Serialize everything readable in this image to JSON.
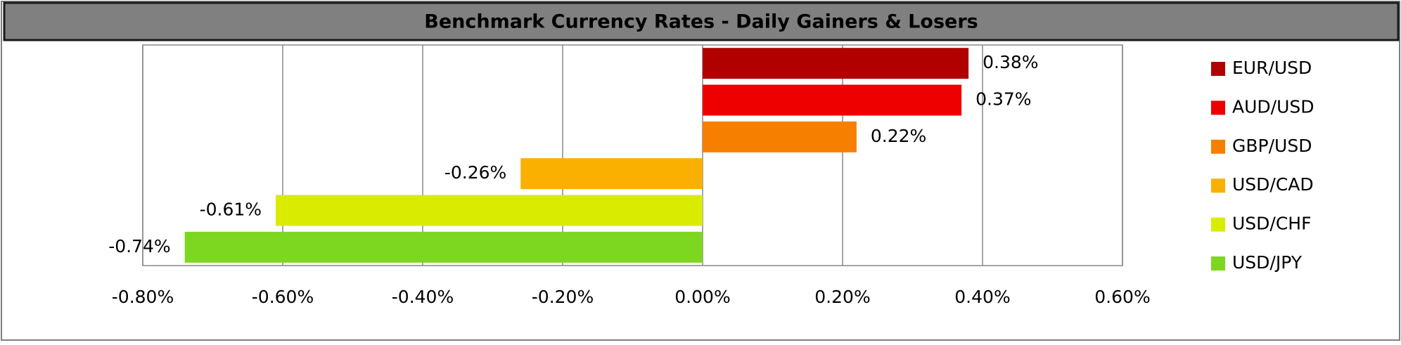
{
  "chart_data": {
    "type": "bar",
    "orientation": "horizontal",
    "title": "Benchmark Currency Rates - Daily Gainers & Losers",
    "categories": [
      "EUR/USD",
      "AUD/USD",
      "GBP/USD",
      "USD/CAD",
      "USD/CHF",
      "USD/JPY"
    ],
    "values": [
      0.38,
      0.37,
      0.22,
      -0.26,
      -0.61,
      -0.74
    ],
    "value_labels": [
      "0.38%",
      "0.37%",
      "0.22%",
      "-0.26%",
      "-0.61%",
      "-0.74%"
    ],
    "colors": [
      "#b00000",
      "#ee0000",
      "#f77f00",
      "#f9b000",
      "#d9ec00",
      "#7dd61f"
    ],
    "xlim": [
      -0.8,
      0.6
    ],
    "xticks": [
      {
        "value": -0.8,
        "label": "-0.80%"
      },
      {
        "value": -0.6,
        "label": "-0.60%"
      },
      {
        "value": -0.4,
        "label": "-0.40%"
      },
      {
        "value": -0.2,
        "label": "-0.20%"
      },
      {
        "value": 0,
        "label": "0.00%"
      },
      {
        "value": 0.2,
        "label": "0.20%"
      },
      {
        "value": 0.4,
        "label": "0.40%"
      },
      {
        "value": 0.6,
        "label": "0.60%"
      }
    ],
    "grid": true,
    "legend": "right"
  }
}
